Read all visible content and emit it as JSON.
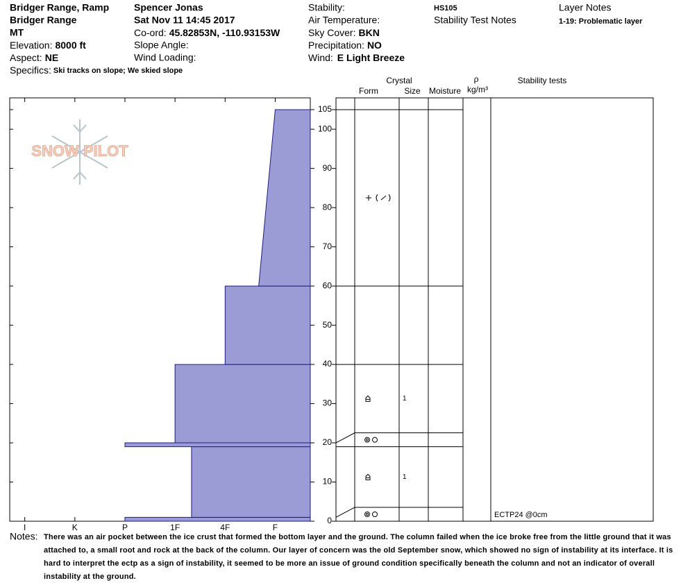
{
  "header": {
    "location": "Bridger Range, Ramp",
    "range": "Bridger Range",
    "state": "MT",
    "elevation": {
      "label": "Elevation:",
      "value": "8000 ft"
    },
    "aspect": {
      "label": "Aspect:",
      "value": "NE"
    },
    "specifics": {
      "label": "Specifics:",
      "value": "Ski tracks on slope; We skied slope"
    },
    "observer": "Spencer Jonas",
    "date": "Sat Nov 11 14:45 2017",
    "coord": {
      "label": "Co-ord:",
      "value": "45.82853N, -110.93153W"
    },
    "slope_angle": "Slope Angle:",
    "wind_loading": "Wind Loading:",
    "stability": "Stability:",
    "air_temperature": "Air Temperature:",
    "sky_cover": {
      "label": "Sky Cover:",
      "value": "BKN"
    },
    "precipitation": {
      "label": "Precipitation:",
      "value": "NO"
    },
    "wind": {
      "label": "Wind:",
      "value": "E Light Breeze"
    },
    "hs": "HS105",
    "stability_test_notes": "Stability Test Notes",
    "layer_notes_title": "Layer Notes",
    "layer_notes": [
      "1-19: Problematic layer"
    ]
  },
  "logo": "SNOW PILOT",
  "columns": {
    "crystal": "Crystal",
    "form": "Form",
    "size": "Size",
    "moisture": "Moisture",
    "density_symbol": "ρ",
    "density_unit": "kg/m³",
    "stability_tests": "Stability tests"
  },
  "stability_tests": [
    "ECTP24 @0cm"
  ],
  "notes": {
    "label": "Notes:",
    "text": "There was an air pocket between the ice crust that formed the bottom layer and the ground. The column failed when the ice broke free from the little ground that it was attached to, a small root and rock at the back of the column. Our layer of concern was the old September snow, which showed no sign of instability at its interface. It is hard to interpret the ectp as a sign of instability, it seemed to be more an issue of ground condition specifically beneath the column and not an indicator of overall instability at the ground."
  },
  "chart_data": {
    "type": "snow-profile",
    "color": "#9b9bd6",
    "ylim": [
      0,
      108
    ],
    "yticks": [
      0,
      10,
      20,
      30,
      40,
      50,
      60,
      70,
      80,
      90,
      100,
      105
    ],
    "xlim": [
      6.3,
      0.3
    ],
    "xticks": [
      {
        "value": 6,
        "label": "I"
      },
      {
        "value": 5,
        "label": "K"
      },
      {
        "value": 4,
        "label": "P"
      },
      {
        "value": 3,
        "label": "1F"
      },
      {
        "value": 2,
        "label": "4F"
      },
      {
        "value": 1,
        "label": "F"
      }
    ],
    "layers": [
      {
        "bottom": 0,
        "top": 1,
        "hardness": 4,
        "size": null
      },
      {
        "bottom": 1,
        "top": 19,
        "hardness": 2.67,
        "size": 1
      },
      {
        "bottom": 19,
        "top": 20,
        "hardness": 4,
        "size": null
      },
      {
        "bottom": 20,
        "top": 40,
        "hardness": 3,
        "size": 1
      },
      {
        "bottom": 40,
        "top": 60,
        "hardness": 2,
        "size": null
      },
      {
        "bottom": 60,
        "top": 105,
        "hardness": 1.33,
        "hardness_top": 1,
        "size": null
      }
    ]
  }
}
